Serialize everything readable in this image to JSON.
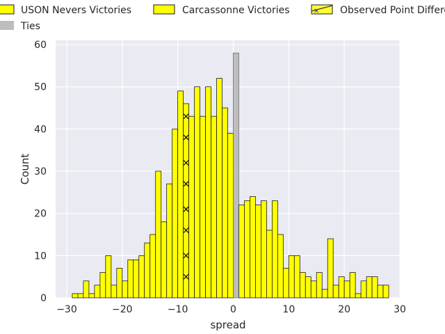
{
  "chart_data": {
    "type": "bar",
    "xlabel": "spread",
    "ylabel": "Count",
    "xlim": [
      -32,
      30
    ],
    "ylim": [
      0,
      61
    ],
    "x_ticks": [
      -30,
      -20,
      -10,
      0,
      10,
      20,
      30
    ],
    "y_ticks": [
      0,
      10,
      20,
      30,
      40,
      50,
      60
    ],
    "grid": true,
    "bin_width": 1,
    "legend": [
      {
        "label": "USON Nevers Victories",
        "color": "#ffff00"
      },
      {
        "label": "Carcassonne Victories",
        "color": "#ffff00"
      },
      {
        "label": "Observed Point Differe",
        "color": "#ffff00"
      },
      {
        "label": "Ties",
        "color": "#bdbdbd"
      }
    ],
    "series": [
      {
        "name": "USON Nevers Victories",
        "color": "#ffff00",
        "x": [
          -29,
          -28,
          -27,
          -26,
          -25,
          -24,
          -23,
          -22,
          -21,
          -20,
          -19,
          -18,
          -17,
          -16,
          -15,
          -14,
          -13,
          -12,
          -11,
          -10,
          -9,
          -8,
          -7,
          -6,
          -5,
          -4,
          -3,
          -2,
          -1
        ],
        "values": [
          1,
          1,
          4,
          1,
          3,
          6,
          10,
          3,
          7,
          4,
          9,
          9,
          10,
          13,
          15,
          30,
          18,
          27,
          40,
          49,
          46,
          43,
          50,
          43,
          50,
          43,
          52,
          45,
          39
        ]
      },
      {
        "name": "Ties",
        "color": "#bdbdbd",
        "x": [
          0
        ],
        "values": [
          58
        ]
      },
      {
        "name": "Carcassonne Victories",
        "color": "#ffff00",
        "x": [
          1,
          2,
          3,
          4,
          5,
          6,
          7,
          8,
          9,
          10,
          11,
          12,
          13,
          14,
          15,
          16,
          17,
          18,
          19,
          20,
          21,
          22,
          23,
          24,
          25,
          26,
          27
        ],
        "values": [
          22,
          23,
          24,
          22,
          23,
          16,
          23,
          15,
          7,
          10,
          10,
          6,
          5,
          4,
          6,
          2,
          14,
          3,
          5,
          4,
          6,
          1,
          4,
          5,
          5,
          3,
          3
        ]
      }
    ],
    "observed_marker": {
      "name": "Observed Point Differe",
      "x": -9,
      "y_values": [
        5,
        10,
        16,
        21,
        27,
        32,
        38,
        43
      ]
    }
  }
}
